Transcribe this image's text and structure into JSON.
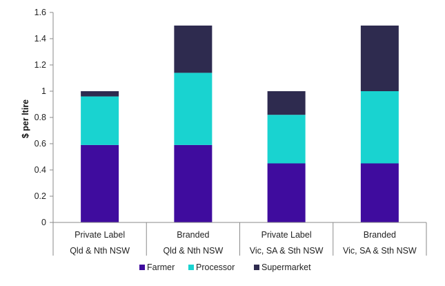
{
  "chart_data": {
    "type": "bar",
    "stacked": true,
    "ylabel": "$ per ltire",
    "xlabel": "",
    "ylim": [
      0,
      1.6
    ],
    "yticks": [
      "0",
      "0.2",
      "0.4",
      "0.6",
      "0.8",
      "1",
      "1.2",
      "1.4",
      "1.6"
    ],
    "grid": false,
    "legend_position": "bottom",
    "categories": [
      {
        "line1": "Private Label",
        "line2": "Qld & Nth NSW"
      },
      {
        "line1": "Branded",
        "line2": "Qld & Nth NSW"
      },
      {
        "line1": "Private Label",
        "line2": "Vic, SA & Sth NSW"
      },
      {
        "line1": "Branded",
        "line2": "Vic, SA & Sth NSW"
      }
    ],
    "series": [
      {
        "name": "Farmer",
        "color": "#3F0C9E",
        "values": [
          0.59,
          0.59,
          0.45,
          0.45
        ]
      },
      {
        "name": "Processor",
        "color": "#19D3D0",
        "values": [
          0.37,
          0.55,
          0.37,
          0.55
        ]
      },
      {
        "name": "Supermarket",
        "color": "#2E2B4F",
        "values": [
          0.04,
          0.36,
          0.18,
          0.5
        ]
      }
    ]
  }
}
